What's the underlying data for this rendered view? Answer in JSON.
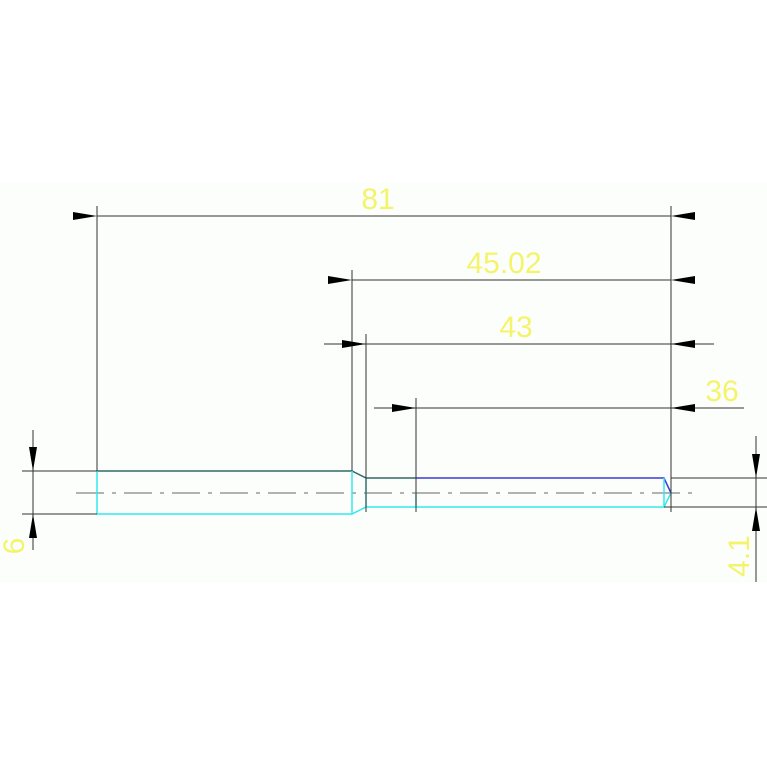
{
  "colors": {
    "background": "#ffffff",
    "band": "#fcfefb",
    "dimension_line": "#222222",
    "dimension_text": "#f4f46a",
    "outline_top": "#2f6868",
    "outline_bottom": "#33e8f0",
    "outline_blue": "#3a3ad8",
    "centerline": "#999999"
  },
  "dimensions": {
    "overall_length": "81",
    "length_45": "45.02",
    "length_43": "43",
    "length_36": "36",
    "diameter_left": "6",
    "diameter_right": "4.1"
  }
}
